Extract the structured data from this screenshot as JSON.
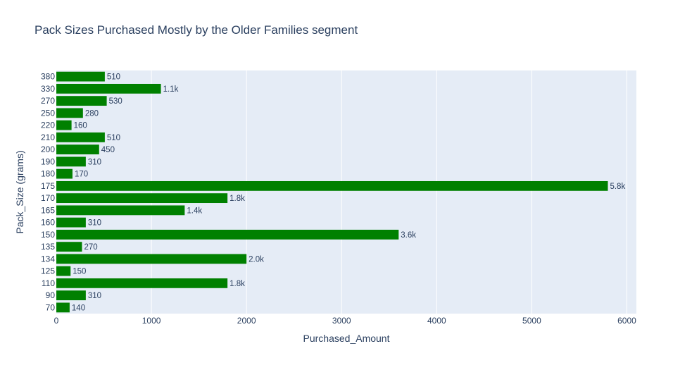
{
  "chart_data": {
    "type": "bar",
    "orientation": "horizontal",
    "title": "Pack Sizes Purchased Mostly by the Older Families segment",
    "xlabel": "Purchased_Amount",
    "ylabel": "Pack_Size (grams)",
    "xlim": [
      0,
      6100
    ],
    "xticks": [
      0,
      1000,
      2000,
      3000,
      4000,
      5000,
      6000
    ],
    "grid": true,
    "bar_color": "#008000",
    "plot_background": "#e5ecf6",
    "categories": [
      "380",
      "330",
      "270",
      "250",
      "220",
      "210",
      "200",
      "190",
      "180",
      "175",
      "170",
      "165",
      "160",
      "150",
      "135",
      "134",
      "125",
      "110",
      "90",
      "70"
    ],
    "values": [
      510,
      1100,
      530,
      280,
      160,
      510,
      450,
      310,
      170,
      5800,
      1800,
      1350,
      310,
      3600,
      270,
      2000,
      150,
      1800,
      310,
      140
    ],
    "labels": [
      "510",
      "1.1k",
      "530",
      "280",
      "160",
      "510",
      "450",
      "310",
      "170",
      "5.8k",
      "1.8k",
      "1.4k",
      "310",
      "3.6k",
      "270",
      "2.0k",
      "150",
      "1.8k",
      "310",
      "140"
    ]
  }
}
